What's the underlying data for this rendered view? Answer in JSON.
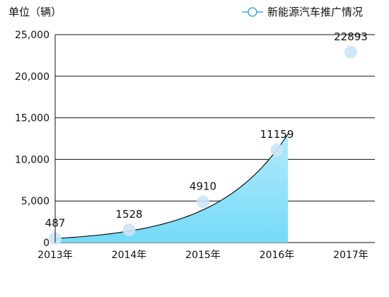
{
  "chart_data": {
    "type": "area",
    "unit_label": "单位（辆）",
    "categories": [
      "2013年",
      "2014年",
      "2015年",
      "2016年",
      "2017年"
    ],
    "series": [
      {
        "name": "新能源汽车推广情况",
        "values": [
          487,
          1528,
          4910,
          11159,
          22893
        ],
        "color": "#7ddcf8"
      }
    ],
    "data_labels": [
      "487",
      "1528",
      "4910",
      "11159",
      "22893"
    ],
    "ylim": [
      0,
      25000
    ],
    "yticks": [
      0,
      5000,
      10000,
      15000,
      20000,
      25000
    ],
    "ytick_labels": [
      "0",
      "5,000",
      "10,000",
      "15,000",
      "20,000",
      "25,000"
    ],
    "grid": true,
    "legend_position": "top-right",
    "marker_color": "#cde6f8",
    "line_color": "#111111",
    "legend_color": "#4aa3e0",
    "area_filled_through": "2016年"
  }
}
